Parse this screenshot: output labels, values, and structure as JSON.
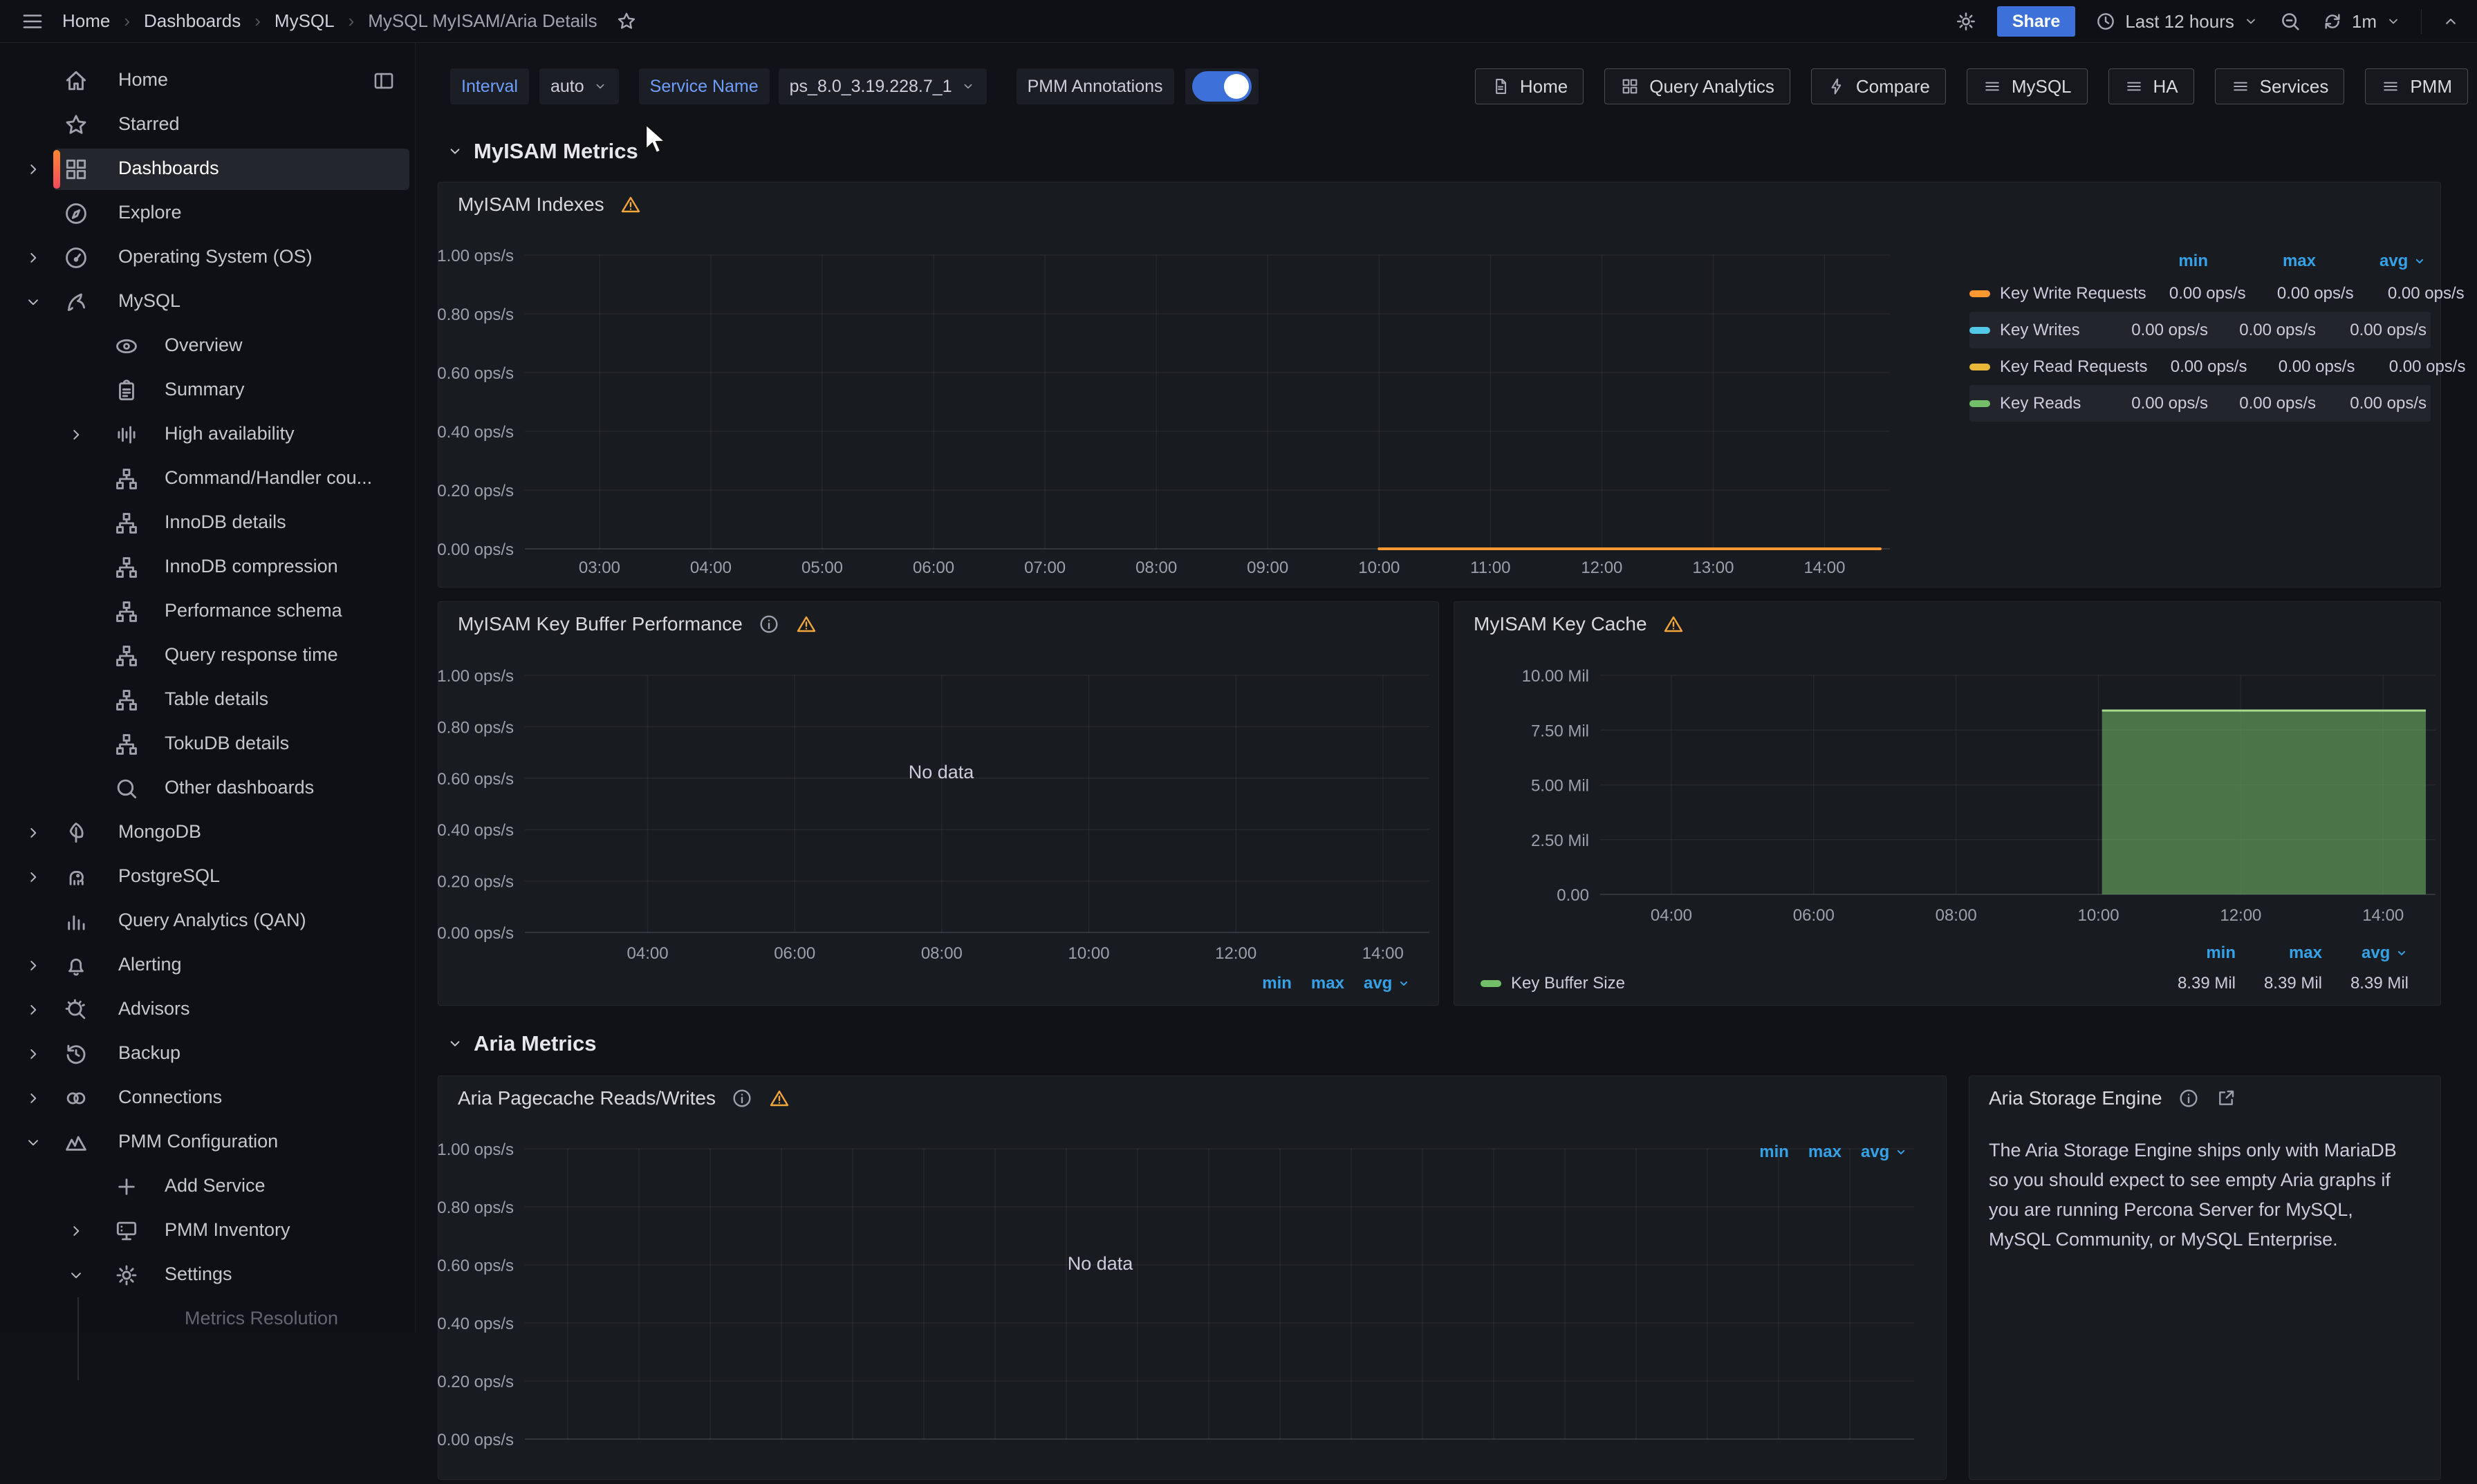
{
  "topbar": {
    "breadcrumbs": [
      "Home",
      "Dashboards",
      "MySQL",
      "MySQL MyISAM/Aria Details"
    ],
    "share_label": "Share",
    "time_range": "Last 12 hours",
    "refresh_interval": "1m"
  },
  "toolbar": {
    "interval_label": "Interval",
    "interval_value": "auto",
    "service_label": "Service Name",
    "service_value": "ps_8.0_3.19.228.7_1",
    "annotations_label": "PMM Annotations",
    "annotations_on": true,
    "links": [
      {
        "label": "Home",
        "icon": "file-icon"
      },
      {
        "label": "Query Analytics",
        "icon": "apps-icon"
      },
      {
        "label": "Compare",
        "icon": "bolt-icon"
      },
      {
        "label": "MySQL",
        "icon": "list-icon"
      },
      {
        "label": "HA",
        "icon": "list-icon"
      },
      {
        "label": "Services",
        "icon": "list-icon"
      },
      {
        "label": "PMM",
        "icon": "list-icon"
      }
    ]
  },
  "sidebar": {
    "items": [
      {
        "label": "Home",
        "icon": "home",
        "level": 0,
        "trailing": "panel-right"
      },
      {
        "label": "Starred",
        "icon": "star",
        "level": 0
      },
      {
        "label": "Dashboards",
        "icon": "apps",
        "level": 0,
        "chevron": "right",
        "active": true
      },
      {
        "label": "Explore",
        "icon": "compass",
        "level": 0
      },
      {
        "label": "Operating System (OS)",
        "icon": "gauge",
        "level": 0,
        "chevron": "right"
      },
      {
        "label": "MySQL",
        "icon": "dolphin",
        "level": 0,
        "chevron": "down"
      },
      {
        "label": "Overview",
        "icon": "eye",
        "level": 1
      },
      {
        "label": "Summary",
        "icon": "clipboard",
        "level": 1
      },
      {
        "label": "High availability",
        "icon": "equalizer",
        "level": 1,
        "chevron": "right"
      },
      {
        "label": "Command/Handler cou...",
        "icon": "sitemap",
        "level": 1
      },
      {
        "label": "InnoDB details",
        "icon": "sitemap",
        "level": 1
      },
      {
        "label": "InnoDB compression",
        "icon": "sitemap",
        "level": 1
      },
      {
        "label": "Performance schema",
        "icon": "sitemap",
        "level": 1
      },
      {
        "label": "Query response time",
        "icon": "sitemap",
        "level": 1
      },
      {
        "label": "Table details",
        "icon": "sitemap",
        "level": 1
      },
      {
        "label": "TokuDB details",
        "icon": "sitemap",
        "level": 1
      },
      {
        "label": "Other dashboards",
        "icon": "search",
        "level": 1
      },
      {
        "label": "MongoDB",
        "icon": "leaf",
        "level": 0,
        "chevron": "right"
      },
      {
        "label": "PostgreSQL",
        "icon": "elephant",
        "level": 0,
        "chevron": "right"
      },
      {
        "label": "Query Analytics (QAN)",
        "icon": "chart-bar",
        "level": 0
      },
      {
        "label": "Alerting",
        "icon": "bell",
        "level": 0,
        "chevron": "right"
      },
      {
        "label": "Advisors",
        "icon": "advisor",
        "level": 0,
        "chevron": "right"
      },
      {
        "label": "Backup",
        "icon": "history",
        "level": 0,
        "chevron": "right"
      },
      {
        "label": "Connections",
        "icon": "link",
        "level": 0,
        "chevron": "right"
      },
      {
        "label": "PMM Configuration",
        "icon": "mountains",
        "level": 0,
        "chevron": "down"
      },
      {
        "label": "Add Service",
        "icon": "plus",
        "level": 1
      },
      {
        "label": "PMM Inventory",
        "icon": "inventory",
        "level": 1,
        "chevron": "right"
      },
      {
        "label": "Settings",
        "icon": "gear",
        "level": 1,
        "chevron": "down"
      },
      {
        "label": "Metrics Resolution",
        "level": 2,
        "dimmed": true
      }
    ]
  },
  "sections": [
    {
      "title": "MyISAM Metrics"
    },
    {
      "title": "Aria Metrics"
    }
  ],
  "chart_data": [
    {
      "id": "indexes",
      "type": "line",
      "title": "MyISAM Indexes",
      "title_icons": [
        "warning"
      ],
      "ylabel_unit": "ops/s",
      "ylim": [
        0,
        1
      ],
      "yticks": [
        {
          "v": 1.0,
          "label": "1.00 ops/s"
        },
        {
          "v": 0.8,
          "label": "0.80 ops/s"
        },
        {
          "v": 0.6,
          "label": "0.60 ops/s"
        },
        {
          "v": 0.4,
          "label": "0.40 ops/s"
        },
        {
          "v": 0.2,
          "label": "0.20 ops/s"
        },
        {
          "v": 0.0,
          "label": "0.00 ops/s"
        }
      ],
      "xticks": [
        {
          "h": 3,
          "label": "03:00"
        },
        {
          "h": 4,
          "label": "04:00"
        },
        {
          "h": 5,
          "label": "05:00"
        },
        {
          "h": 6,
          "label": "06:00"
        },
        {
          "h": 7,
          "label": "07:00"
        },
        {
          "h": 8,
          "label": "08:00"
        },
        {
          "h": 9,
          "label": "09:00"
        },
        {
          "h": 10,
          "label": "10:00"
        },
        {
          "h": 11,
          "label": "11:00"
        },
        {
          "h": 12,
          "label": "12:00"
        },
        {
          "h": 13,
          "label": "13:00"
        },
        {
          "h": 14,
          "label": "14:00"
        }
      ],
      "legend_headers": [
        "min",
        "max",
        "avg"
      ],
      "legend_sorted": "avg",
      "series": [
        {
          "name": "Key Write Requests",
          "color": "#FF9830",
          "line": {
            "from": 10.0,
            "to": 14.5,
            "value": 0
          },
          "min": "0.00 ops/s",
          "max": "0.00 ops/s",
          "avg": "0.00 ops/s"
        },
        {
          "name": "Key Writes",
          "color": "#53C8E8",
          "min": "0.00 ops/s",
          "max": "0.00 ops/s",
          "avg": "0.00 ops/s",
          "highlighted": true
        },
        {
          "name": "Key Read Requests",
          "color": "#EAB839",
          "min": "0.00 ops/s",
          "max": "0.00 ops/s",
          "avg": "0.00 ops/s"
        },
        {
          "name": "Key Reads",
          "color": "#73BF69",
          "min": "0.00 ops/s",
          "max": "0.00 ops/s",
          "avg": "0.00 ops/s",
          "highlighted": true
        }
      ]
    },
    {
      "id": "buffer",
      "type": "line",
      "title": "MyISAM Key Buffer Performance",
      "title_icons": [
        "info",
        "warning"
      ],
      "no_data": "No data",
      "ylabel_unit": "ops/s",
      "ylim": [
        0,
        1
      ],
      "yticks": [
        {
          "v": 1.0,
          "label": "1.00 ops/s"
        },
        {
          "v": 0.8,
          "label": "0.80 ops/s"
        },
        {
          "v": 0.6,
          "label": "0.60 ops/s"
        },
        {
          "v": 0.4,
          "label": "0.40 ops/s"
        },
        {
          "v": 0.2,
          "label": "0.20 ops/s"
        },
        {
          "v": 0.0,
          "label": "0.00 ops/s"
        }
      ],
      "xticks": [
        {
          "h": 4,
          "label": "04:00"
        },
        {
          "h": 6,
          "label": "06:00"
        },
        {
          "h": 8,
          "label": "08:00"
        },
        {
          "h": 10,
          "label": "10:00"
        },
        {
          "h": 12,
          "label": "12:00"
        },
        {
          "h": 14,
          "label": "14:00"
        }
      ],
      "legend_headers": [
        "min",
        "max",
        "avg"
      ],
      "series": []
    },
    {
      "id": "cache",
      "type": "area",
      "title": "MyISAM Key Cache",
      "title_icons": [
        "warning"
      ],
      "ylabel_unit": "Mil",
      "ylim": [
        0,
        10
      ],
      "yticks": [
        {
          "v": 10.0,
          "label": "10.00 Mil"
        },
        {
          "v": 7.5,
          "label": "7.50 Mil"
        },
        {
          "v": 5.0,
          "label": "5.00 Mil"
        },
        {
          "v": 2.5,
          "label": "2.50 Mil"
        },
        {
          "v": 0.0,
          "label": "0.00"
        }
      ],
      "xticks": [
        {
          "h": 4,
          "label": "04:00"
        },
        {
          "h": 6,
          "label": "06:00"
        },
        {
          "h": 8,
          "label": "08:00"
        },
        {
          "h": 10,
          "label": "10:00"
        },
        {
          "h": 12,
          "label": "12:00"
        },
        {
          "h": 14,
          "label": "14:00"
        }
      ],
      "legend_headers": [
        "min",
        "max",
        "avg"
      ],
      "series": [
        {
          "name": "Key Buffer Size",
          "color": "#73BF69",
          "area": {
            "from": 10.05,
            "to": 14.6,
            "value": 8.39
          },
          "min": "8.39 Mil",
          "max": "8.39 Mil",
          "avg": "8.39 Mil"
        }
      ]
    },
    {
      "id": "aria",
      "type": "line",
      "title": "Aria Pagecache Reads/Writes",
      "title_icons": [
        "info",
        "warning"
      ],
      "no_data": "No data",
      "ylabel_unit": "ops/s",
      "ylim": [
        0,
        1
      ],
      "yticks": [
        {
          "v": 1.0,
          "label": "1.00 ops/s"
        },
        {
          "v": 0.8,
          "label": "0.80 ops/s"
        },
        {
          "v": 0.6,
          "label": "0.60 ops/s"
        },
        {
          "v": 0.4,
          "label": "0.40 ops/s"
        },
        {
          "v": 0.2,
          "label": "0.20 ops/s"
        },
        {
          "v": 0.0,
          "label": "0.00 ops/s"
        }
      ],
      "xticks": [],
      "legend_headers": [
        "min",
        "max",
        "avg"
      ],
      "series": []
    }
  ],
  "text_panel": {
    "title": "Aria Storage Engine",
    "body": "The Aria Storage Engine ships only with MariaDB so you should expect to see empty Aria graphs if you are running Percona Server for MySQL, MySQL Community, or MySQL Enterprise."
  },
  "colors": {
    "accent_blue": "#3D71D9",
    "link_blue": "#6E9FFF",
    "legend_blue": "#35A2E8",
    "orange": "#FF9830",
    "cyan": "#53C8E8",
    "yellow": "#EAB839",
    "green": "#73BF69",
    "warning": "#F2A63B"
  }
}
